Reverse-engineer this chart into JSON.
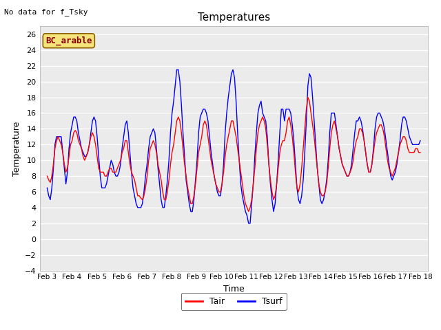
{
  "title": "Temperatures",
  "xlabel": "Time",
  "ylabel": "Temperature",
  "note": "No data for f_Tsky",
  "site_label": "BC_arable",
  "ylim": [
    -4,
    27
  ],
  "yticks": [
    -4,
    -2,
    0,
    2,
    4,
    6,
    8,
    10,
    12,
    14,
    16,
    18,
    20,
    22,
    24,
    26
  ],
  "xtick_labels": [
    "Feb 3",
    "Feb 4",
    "Feb 5",
    "Feb 6",
    "Feb 7",
    "Feb 8",
    "Feb 9",
    "Feb 10",
    "Feb 11",
    "Feb 12",
    "Feb 13",
    "Feb 14",
    "Feb 15",
    "Feb 16",
    "Feb 17",
    "Feb 18"
  ],
  "tair_color": "#ff0000",
  "tsurf_color": "#0000ff",
  "plot_bg": "#ebebeb",
  "legend_entries": [
    "Tair",
    "Tsurf"
  ],
  "tair": [
    8.0,
    7.5,
    7.2,
    8.0,
    9.5,
    11.5,
    12.5,
    13.0,
    12.5,
    12.0,
    11.0,
    9.5,
    8.5,
    9.0,
    10.5,
    12.0,
    12.5,
    13.5,
    13.8,
    13.5,
    12.5,
    12.0,
    11.5,
    10.5,
    10.0,
    10.5,
    11.0,
    12.0,
    13.0,
    13.5,
    13.0,
    12.0,
    10.5,
    9.0,
    8.5,
    8.5,
    8.5,
    8.0,
    8.0,
    8.5,
    9.0,
    9.0,
    8.5,
    8.5,
    8.5,
    9.0,
    9.5,
    10.0,
    11.0,
    11.5,
    12.5,
    12.5,
    11.0,
    9.5,
    8.5,
    8.0,
    7.5,
    6.5,
    5.5,
    5.5,
    5.2,
    5.0,
    5.5,
    6.5,
    8.0,
    10.0,
    11.5,
    12.0,
    12.5,
    12.0,
    11.0,
    9.5,
    8.5,
    7.5,
    6.0,
    5.0,
    5.0,
    6.0,
    7.5,
    9.5,
    11.0,
    12.0,
    13.5,
    15.0,
    15.5,
    15.0,
    13.5,
    11.5,
    9.5,
    8.0,
    6.5,
    5.5,
    4.5,
    4.5,
    5.5,
    7.0,
    9.0,
    11.0,
    12.0,
    13.0,
    14.5,
    15.0,
    14.5,
    13.0,
    11.5,
    10.0,
    9.0,
    8.0,
    7.0,
    6.5,
    6.0,
    6.0,
    7.0,
    8.5,
    10.5,
    12.0,
    13.0,
    14.0,
    15.0,
    15.0,
    14.0,
    13.0,
    11.5,
    10.0,
    8.5,
    7.0,
    5.5,
    4.5,
    4.0,
    3.5,
    4.0,
    5.0,
    7.0,
    9.0,
    11.5,
    13.5,
    14.5,
    15.0,
    15.5,
    15.0,
    14.0,
    12.0,
    9.5,
    7.5,
    6.0,
    5.0,
    5.5,
    7.0,
    9.0,
    11.0,
    12.0,
    12.5,
    12.5,
    13.5,
    15.0,
    15.5,
    14.5,
    13.0,
    11.0,
    8.5,
    6.5,
    6.0,
    7.0,
    9.0,
    11.5,
    14.0,
    16.5,
    18.0,
    17.5,
    16.0,
    14.5,
    13.0,
    11.0,
    9.0,
    7.0,
    6.0,
    5.5,
    5.5,
    6.0,
    7.0,
    9.0,
    11.5,
    13.5,
    14.5,
    15.0,
    14.0,
    13.0,
    11.5,
    10.5,
    9.5,
    9.0,
    8.5,
    8.0,
    8.0,
    8.5,
    9.0,
    10.0,
    11.5,
    12.5,
    13.0,
    14.0,
    14.0,
    13.5,
    12.5,
    11.0,
    9.5,
    8.5,
    8.5,
    9.5,
    11.0,
    12.5,
    13.5,
    14.0,
    14.5,
    14.5,
    14.0,
    13.0,
    11.5,
    10.0,
    9.0,
    8.5,
    8.0,
    8.5,
    9.0,
    10.0,
    11.0,
    12.0,
    12.5,
    13.0,
    13.0,
    12.5,
    11.5,
    11.0,
    11.0,
    11.0,
    11.0,
    11.5,
    11.5,
    11.0,
    11.0
  ],
  "tsurf": [
    6.5,
    5.5,
    5.0,
    6.5,
    9.0,
    12.0,
    13.0,
    13.0,
    13.0,
    13.0,
    11.0,
    9.0,
    7.0,
    8.5,
    11.5,
    13.5,
    14.5,
    15.5,
    15.5,
    15.0,
    13.5,
    12.5,
    11.5,
    11.0,
    10.5,
    10.5,
    11.0,
    12.0,
    13.5,
    15.0,
    15.5,
    15.0,
    13.0,
    10.5,
    8.0,
    6.5,
    6.5,
    6.5,
    7.0,
    8.0,
    9.0,
    10.0,
    9.5,
    8.5,
    8.0,
    8.0,
    8.5,
    9.5,
    11.5,
    13.0,
    14.5,
    15.0,
    13.5,
    11.0,
    8.5,
    6.5,
    5.5,
    4.5,
    4.0,
    4.0,
    4.0,
    4.5,
    6.0,
    8.0,
    9.5,
    11.5,
    13.0,
    13.5,
    14.0,
    13.5,
    11.5,
    9.0,
    7.0,
    5.0,
    4.0,
    4.0,
    5.5,
    7.5,
    10.0,
    13.5,
    16.0,
    17.5,
    19.5,
    21.5,
    21.5,
    20.0,
    17.0,
    13.5,
    10.5,
    7.5,
    6.0,
    4.5,
    3.5,
    3.5,
    5.0,
    7.5,
    10.0,
    13.5,
    15.5,
    16.0,
    16.5,
    16.5,
    16.0,
    15.0,
    13.0,
    11.0,
    9.5,
    8.0,
    7.0,
    6.0,
    5.5,
    5.5,
    7.0,
    9.5,
    13.5,
    16.0,
    18.0,
    19.5,
    21.0,
    21.5,
    20.5,
    17.5,
    13.5,
    10.0,
    7.0,
    5.5,
    4.5,
    3.5,
    3.0,
    2.0,
    2.0,
    4.5,
    7.0,
    10.5,
    13.5,
    16.0,
    17.0,
    17.5,
    16.0,
    15.5,
    15.0,
    13.0,
    9.5,
    7.0,
    5.0,
    3.5,
    4.5,
    7.0,
    10.0,
    13.5,
    16.5,
    16.5,
    15.0,
    16.5,
    16.5,
    16.5,
    16.0,
    14.5,
    12.5,
    9.5,
    6.5,
    5.0,
    4.5,
    5.5,
    7.5,
    11.0,
    15.0,
    19.5,
    21.0,
    20.5,
    18.0,
    15.0,
    12.0,
    9.0,
    7.0,
    5.0,
    4.5,
    5.0,
    6.0,
    7.5,
    10.0,
    13.5,
    16.0,
    16.0,
    16.0,
    14.5,
    13.0,
    11.5,
    10.5,
    9.5,
    9.0,
    8.5,
    8.0,
    8.0,
    8.5,
    9.5,
    11.5,
    13.5,
    15.0,
    15.0,
    15.5,
    15.0,
    14.0,
    12.5,
    11.0,
    9.5,
    8.5,
    8.5,
    9.5,
    11.5,
    14.0,
    15.5,
    16.0,
    16.0,
    15.5,
    15.0,
    14.0,
    12.5,
    11.0,
    9.5,
    8.0,
    7.5,
    8.0,
    8.5,
    9.5,
    11.0,
    12.5,
    14.5,
    15.5,
    15.5,
    15.0,
    14.0,
    13.0,
    12.5,
    12.0,
    12.0,
    12.0,
    12.0,
    12.0,
    12.5
  ]
}
